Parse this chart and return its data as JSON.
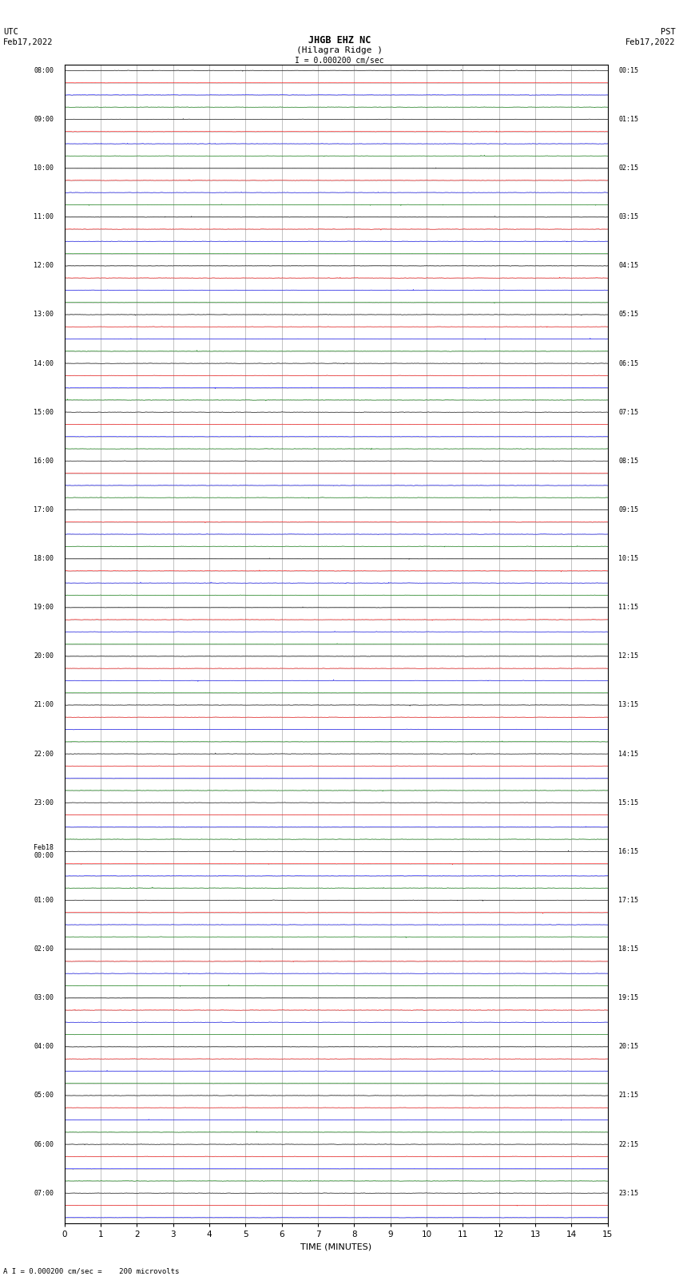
{
  "title_line1": "JHGB EHZ NC",
  "title_line2": "(Hilagra Ridge )",
  "scale_label": "I = 0.000200 cm/sec",
  "left_label_top": "UTC",
  "left_label_date": "Feb17,2022",
  "right_label_top": "PST",
  "right_label_date": "Feb17,2022",
  "xlabel": "TIME (MINUTES)",
  "bottom_note": "A I = 0.000200 cm/sec =    200 microvolts",
  "left_times_utc": [
    "08:00",
    "",
    "",
    "",
    "09:00",
    "",
    "",
    "",
    "10:00",
    "",
    "",
    "",
    "11:00",
    "",
    "",
    "",
    "12:00",
    "",
    "",
    "",
    "13:00",
    "",
    "",
    "",
    "14:00",
    "",
    "",
    "",
    "15:00",
    "",
    "",
    "",
    "16:00",
    "",
    "",
    "",
    "17:00",
    "",
    "",
    "",
    "18:00",
    "",
    "",
    "",
    "19:00",
    "",
    "",
    "",
    "20:00",
    "",
    "",
    "",
    "21:00",
    "",
    "",
    "",
    "22:00",
    "",
    "",
    "",
    "23:00",
    "",
    "",
    "",
    "Feb18\n00:00",
    "",
    "",
    "",
    "01:00",
    "",
    "",
    "",
    "02:00",
    "",
    "",
    "",
    "03:00",
    "",
    "",
    "",
    "04:00",
    "",
    "",
    "",
    "05:00",
    "",
    "",
    "",
    "06:00",
    "",
    "",
    "",
    "07:00",
    "",
    ""
  ],
  "right_times_pst": [
    "00:15",
    "",
    "",
    "",
    "01:15",
    "",
    "",
    "",
    "02:15",
    "",
    "",
    "",
    "03:15",
    "",
    "",
    "",
    "04:15",
    "",
    "",
    "",
    "05:15",
    "",
    "",
    "",
    "06:15",
    "",
    "",
    "",
    "07:15",
    "",
    "",
    "",
    "08:15",
    "",
    "",
    "",
    "09:15",
    "",
    "",
    "",
    "10:15",
    "",
    "",
    "",
    "11:15",
    "",
    "",
    "",
    "12:15",
    "",
    "",
    "",
    "13:15",
    "",
    "",
    "",
    "14:15",
    "",
    "",
    "",
    "15:15",
    "",
    "",
    "",
    "16:15",
    "",
    "",
    "",
    "17:15",
    "",
    "",
    "",
    "18:15",
    "",
    "",
    "",
    "19:15",
    "",
    "",
    "",
    "20:15",
    "",
    "",
    "",
    "21:15",
    "",
    "",
    "",
    "22:15",
    "",
    "",
    "",
    "23:15",
    "",
    ""
  ],
  "num_rows": 95,
  "minutes_per_row": 15,
  "colors": [
    "black",
    "red",
    "blue",
    "green"
  ],
  "bg_color": "white",
  "grid_color": "#aaaaaa",
  "noise_amplitude": 0.018,
  "spike_probability": 0.0008,
  "spike_amplitude": 0.08
}
